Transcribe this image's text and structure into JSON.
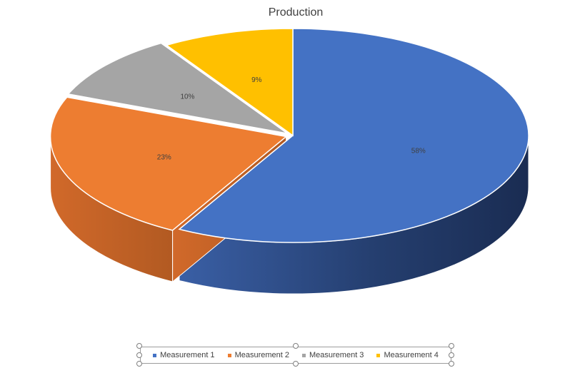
{
  "chart_data": {
    "type": "pie",
    "title": "Production",
    "style": "3d",
    "legend_position": "bottom",
    "categories": [
      "Measurement 1",
      "Measurement 2",
      "Measurement 3",
      "Measurement 4"
    ],
    "values": [
      58,
      23,
      10,
      9
    ],
    "data_labels": [
      "58%",
      "23%",
      "10%",
      "9%"
    ],
    "colors": [
      "#4472C4",
      "#ED7D31",
      "#A5A5A5",
      "#FFC000"
    ],
    "exploded": [
      "Measurement 2",
      "Measurement 3"
    ]
  }
}
